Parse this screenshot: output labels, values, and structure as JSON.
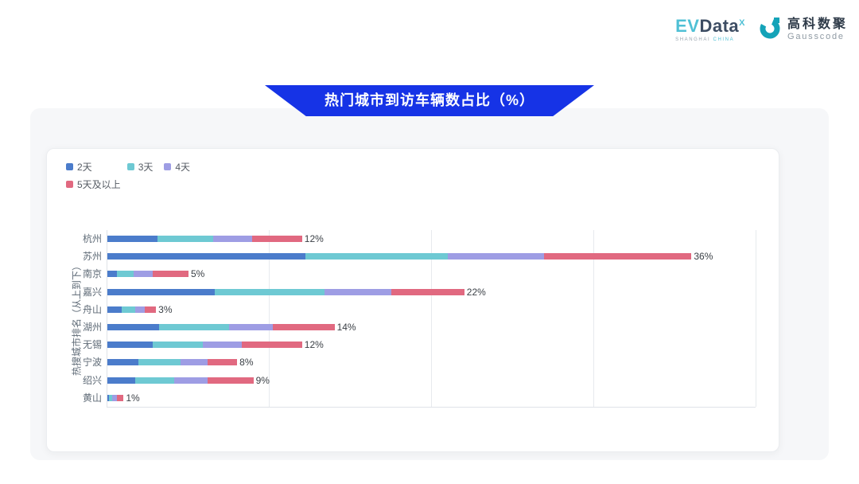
{
  "header": {
    "evdata_logo": {
      "text_ev": "EV",
      "text_data": "Data",
      "sup": "X",
      "subtext_left": "SHANGHAI",
      "subtext_right": "CHINA"
    },
    "gausscode_logo": {
      "name_cn": "高科数聚",
      "name_en": "Gausscode"
    }
  },
  "banner": {
    "title": "热门城市到访车辆数占比（%）"
  },
  "colors": {
    "banner_blue": "#1633e6",
    "brand_teal": "#14a3b8",
    "grid_gray": "#e7eaee"
  },
  "chart_data": {
    "type": "bar",
    "orientation": "horizontal",
    "stacked": true,
    "title": "热门城市到访车辆数占比（%）",
    "ylabel": "热搜城市排名（从上到下）",
    "xlabel": "",
    "xlim": [
      0,
      40
    ],
    "gridlines": [
      10,
      20,
      30,
      40
    ],
    "grid": true,
    "legend_position": "top-left",
    "categories": [
      "杭州",
      "苏州",
      "南京",
      "嘉兴",
      "舟山",
      "湖州",
      "无锡",
      "宁波",
      "绍兴",
      "黄山"
    ],
    "series": [
      {
        "name": "2天",
        "color": "#4b7ccb",
        "values": [
          3.1,
          12.2,
          0.6,
          6.6,
          0.9,
          3.2,
          2.8,
          1.9,
          1.7,
          0.1
        ]
      },
      {
        "name": "3天",
        "color": "#6ec9d3",
        "values": [
          3.4,
          8.8,
          1.0,
          6.8,
          0.8,
          4.3,
          3.1,
          2.6,
          2.4,
          0.2
        ]
      },
      {
        "name": "4天",
        "color": "#9e9de4",
        "values": [
          2.4,
          5.9,
          1.2,
          4.1,
          0.6,
          2.7,
          2.4,
          1.7,
          2.1,
          0.3
        ]
      },
      {
        "name": "5天及以上",
        "color": "#e16980",
        "values": [
          3.1,
          9.1,
          2.2,
          4.5,
          0.7,
          3.8,
          3.7,
          1.8,
          2.8,
          0.4
        ]
      }
    ],
    "totals": [
      12,
      36,
      5,
      22,
      3,
      14,
      12,
      8,
      9,
      1
    ],
    "total_labels": [
      "12%",
      "36%",
      "5%",
      "22%",
      "3%",
      "14%",
      "12%",
      "8%",
      "9%",
      "1%"
    ]
  }
}
